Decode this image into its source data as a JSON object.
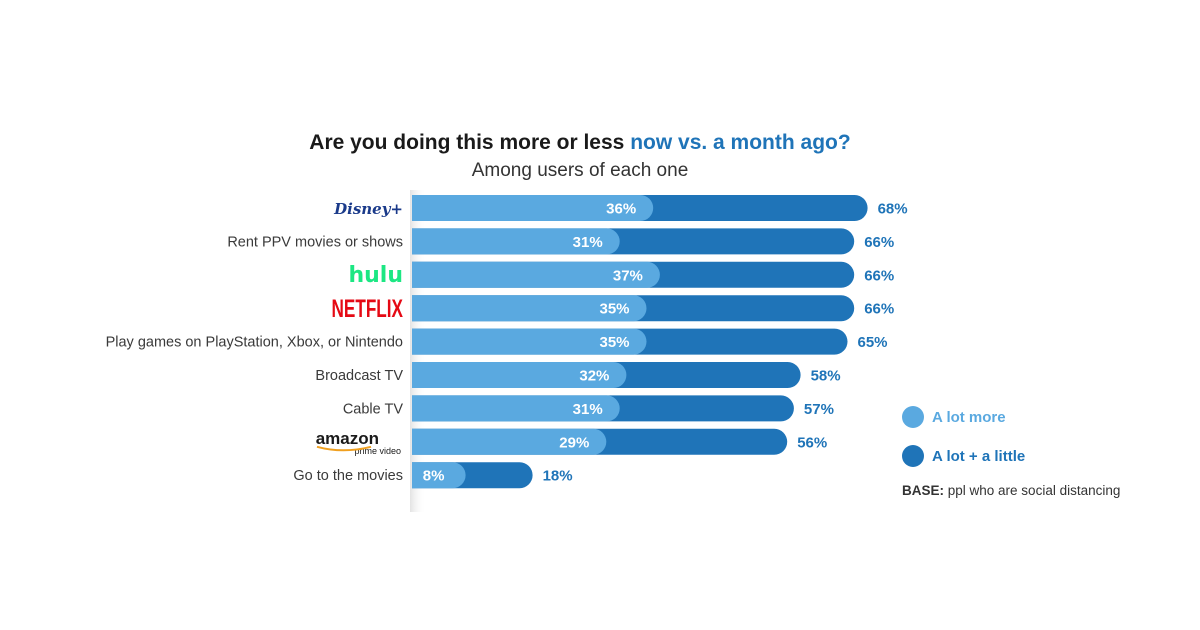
{
  "header": {
    "title_part1": "Are you doing this more or less ",
    "title_part2": "now vs. a month ago?",
    "subtitle": "Among users of each one"
  },
  "legend": {
    "a_lot_more": "A lot more",
    "a_lot_a_little": "A lot + a little"
  },
  "base_note": {
    "label": "BASE:",
    "text": " ppl who are social distancing"
  },
  "colors": {
    "a_lot_more": "#5aa9e0",
    "a_lot_a_little": "#1f74b8",
    "disney": "#1a3a8a",
    "hulu": "#1ce783",
    "netflix": "#e50914"
  },
  "chart_data": {
    "type": "bar",
    "orientation": "horizontal",
    "categories": [
      "Disney+",
      "Rent PPV movies or shows",
      "Hulu",
      "Netflix",
      "Play games on PlayStation, Xbox, or Nintendo",
      "Broadcast TV",
      "Cable TV",
      "Amazon Prime Video",
      "Go to the movies"
    ],
    "category_logos": {
      "Disney+": "Disney+",
      "Hulu": "hulu",
      "Netflix": "NETFLIX",
      "Amazon Prime Video": {
        "wordmark": "amazon",
        "subtext": "prime video"
      }
    },
    "series": [
      {
        "name": "A lot more",
        "values": [
          36,
          31,
          37,
          35,
          35,
          32,
          31,
          29,
          8
        ]
      },
      {
        "name": "A lot + a little",
        "values": [
          68,
          66,
          66,
          66,
          65,
          58,
          57,
          56,
          18
        ]
      }
    ],
    "value_format": "percent",
    "xlim": [
      0,
      100
    ],
    "grid": false,
    "legend_position": "right"
  }
}
